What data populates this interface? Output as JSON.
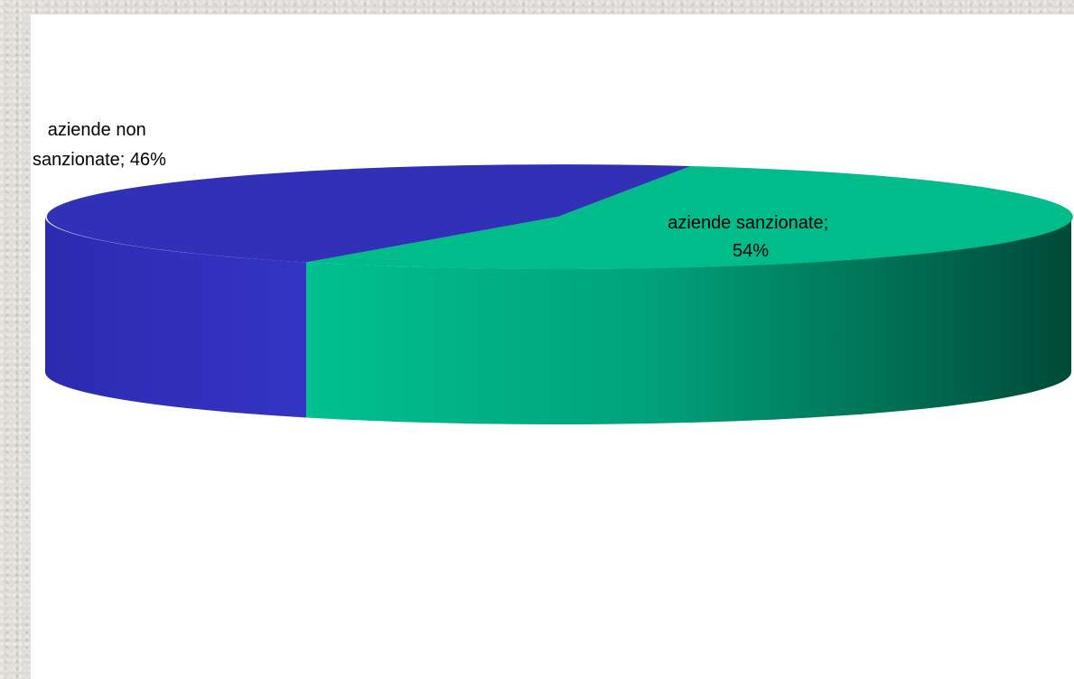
{
  "chart_data": {
    "type": "pie",
    "style": "3d",
    "slices": [
      {
        "label": "aziende sanzionate",
        "value": 54,
        "display": "54%",
        "color": "#00bb8a"
      },
      {
        "label": "aziende non sanzionate",
        "value": 46,
        "display": "46%",
        "color": "#3131b8"
      }
    ],
    "data_labels": {
      "sanzionate": {
        "line1": "aziende sanzionate;",
        "line2": "54%"
      },
      "non_sanzionate": {
        "line1": "aziende non",
        "line2": "sanzionate; 46%"
      }
    },
    "legend": "none",
    "grid": false
  }
}
